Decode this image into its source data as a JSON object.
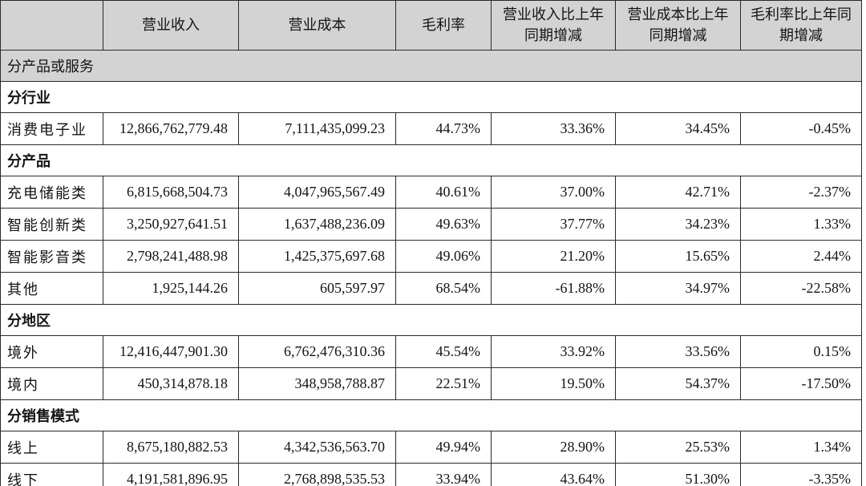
{
  "table": {
    "columns": [
      "",
      "营业收入",
      "营业成本",
      "毛利率",
      "营业收入比上年同期增减",
      "营业成本比上年同期增减",
      "毛利率比上年同期增减"
    ],
    "rows": [
      {
        "type": "band",
        "label": "分产品或服务"
      },
      {
        "type": "section",
        "label": "分行业"
      },
      {
        "type": "data",
        "label": "消费电子业",
        "values": [
          "12,866,762,779.48",
          "7,111,435,099.23",
          "44.73%",
          "33.36%",
          "34.45%",
          "-0.45%"
        ]
      },
      {
        "type": "section",
        "label": "分产品"
      },
      {
        "type": "data",
        "label": "充电储能类",
        "values": [
          "6,815,668,504.73",
          "4,047,965,567.49",
          "40.61%",
          "37.00%",
          "42.71%",
          "-2.37%"
        ]
      },
      {
        "type": "data",
        "label": "智能创新类",
        "values": [
          "3,250,927,641.51",
          "1,637,488,236.09",
          "49.63%",
          "37.77%",
          "34.23%",
          "1.33%"
        ]
      },
      {
        "type": "data",
        "label": "智能影音类",
        "values": [
          "2,798,241,488.98",
          "1,425,375,697.68",
          "49.06%",
          "21.20%",
          "15.65%",
          "2.44%"
        ]
      },
      {
        "type": "data",
        "label": "其他",
        "values": [
          "1,925,144.26",
          "605,597.97",
          "68.54%",
          "-61.88%",
          "34.97%",
          "-22.58%"
        ]
      },
      {
        "type": "section",
        "label": "分地区"
      },
      {
        "type": "data",
        "label": "境外",
        "values": [
          "12,416,447,901.30",
          "6,762,476,310.36",
          "45.54%",
          "33.92%",
          "33.56%",
          "0.15%"
        ]
      },
      {
        "type": "data",
        "label": "境内",
        "values": [
          "450,314,878.18",
          "348,958,788.87",
          "22.51%",
          "19.50%",
          "54.37%",
          "-17.50%"
        ]
      },
      {
        "type": "section",
        "label": "分销售模式"
      },
      {
        "type": "data",
        "label": "线上",
        "values": [
          "8,675,180,882.53",
          "4,342,536,563.70",
          "49.94%",
          "28.90%",
          "25.53%",
          "1.34%"
        ]
      },
      {
        "type": "data",
        "label": "线下",
        "values": [
          "4,191,581,896.95",
          "2,768,898,535.53",
          "33.94%",
          "43.64%",
          "51.30%",
          "-3.35%"
        ]
      }
    ],
    "colors": {
      "header_bg": "#d3d3d3",
      "band_bg": "#d3d3d3",
      "border": "#2a2a2a",
      "text": "#141414"
    }
  }
}
